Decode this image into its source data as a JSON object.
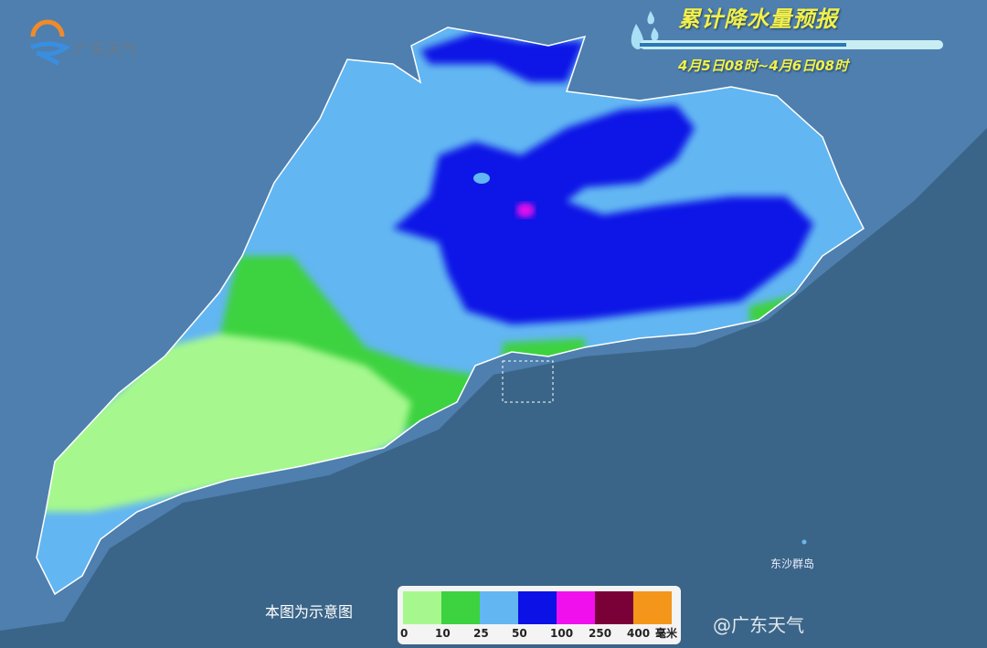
{
  "logo": {
    "text": "广东天气"
  },
  "header": {
    "title": "累计降水量预报",
    "period": "4月5日08时~4月6日08时",
    "progress_percent": 68
  },
  "labels": {
    "island": "东沙群岛",
    "note": "本图为示意图",
    "watermark": "@广东天气"
  },
  "legend": {
    "colors": [
      "#a6f88e",
      "#3cd240",
      "#62b6f2",
      "#0c12e6",
      "#f010ee",
      "#7a0038",
      "#f4961a"
    ],
    "ticks": [
      "0",
      "10",
      "25",
      "50",
      "100",
      "250",
      "400"
    ],
    "unit": "毫米"
  },
  "colors": {
    "land": "#4e7fae",
    "sea": "#3a6588"
  }
}
